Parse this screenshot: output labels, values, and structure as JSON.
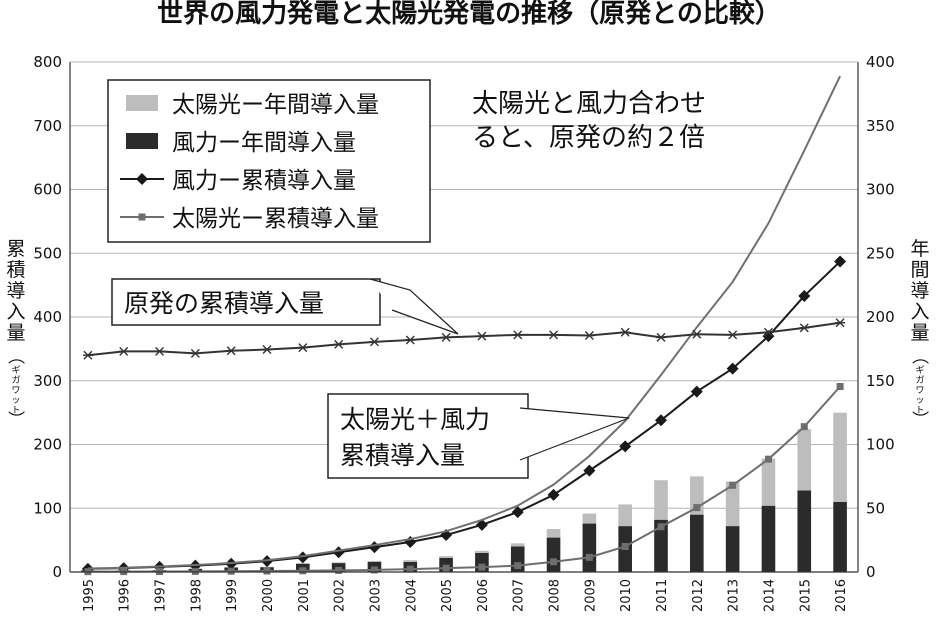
{
  "chart_data": {
    "type": "bar+line",
    "title": "世界の風力発電と太陽光発電の推移（原発との比較）",
    "categories": [
      "1995",
      "1996",
      "1997",
      "1998",
      "1999",
      "2000",
      "2001",
      "2002",
      "2003",
      "2004",
      "2005",
      "2006",
      "2007",
      "2008",
      "2009",
      "2010",
      "2011",
      "2012",
      "2013",
      "2014",
      "2015",
      "2016"
    ],
    "y_left": {
      "label_chars": [
        "累",
        "積",
        "導",
        "入",
        "量"
      ],
      "unit_paren_open": "（",
      "unit_chars": [
        "ギ",
        "ガ",
        "ワ",
        "ッ",
        "ト"
      ],
      "unit_paren_close": "）",
      "ylim": [
        0,
        800
      ],
      "ticks": [
        0,
        100,
        200,
        300,
        400,
        500,
        600,
        700,
        800
      ]
    },
    "y_right": {
      "label_chars": [
        "年",
        "間",
        "導",
        "入",
        "量"
      ],
      "unit_paren_open": "（",
      "unit_chars": [
        "ギ",
        "ガ",
        "ワ",
        "ッ",
        "ト"
      ],
      "unit_paren_close": "）",
      "ylim": [
        0,
        400
      ],
      "ticks": [
        0,
        50,
        100,
        150,
        200,
        250,
        300,
        350,
        400
      ]
    },
    "grid": true,
    "legend_position": "top-left",
    "series": [
      {
        "name": "太陽光ー年間導入量",
        "kind": "bar",
        "axis": "right",
        "color": "#bdbdbd",
        "values": [
          0.1,
          0.1,
          0.1,
          0.2,
          0.3,
          0.3,
          0.4,
          0.6,
          0.7,
          1.3,
          1.5,
          1.6,
          2.5,
          6.7,
          7.8,
          17,
          31,
          30,
          35,
          37,
          48,
          70
        ]
      },
      {
        "name": "風力ー年間導入量",
        "kind": "bar",
        "axis": "right",
        "color": "#2b2b2b",
        "values": [
          1.3,
          1.3,
          1.5,
          2.5,
          3.5,
          3.8,
          6.5,
          7,
          8,
          8,
          11,
          15,
          20,
          27,
          38,
          36,
          41,
          45,
          36,
          52,
          64,
          55
        ]
      },
      {
        "name": "風力ー累積導入量",
        "kind": "line",
        "axis": "left",
        "marker": "diamond",
        "color": "#1a1a1a",
        "values": [
          5,
          6,
          8,
          10,
          13,
          17,
          23,
          31,
          39,
          47,
          58,
          74,
          94,
          121,
          159,
          197,
          238,
          283,
          319,
          370,
          433,
          487
        ]
      },
      {
        "name": "太陽光ー累積導入量",
        "kind": "line",
        "axis": "left",
        "marker": "square",
        "color": "#6e6e6e",
        "values": [
          0.5,
          0.6,
          0.7,
          0.9,
          1.2,
          1.5,
          1.9,
          2.5,
          3.2,
          4.5,
          6,
          7.6,
          10,
          16,
          23,
          40,
          71,
          101,
          136,
          177,
          228,
          291
        ]
      },
      {
        "name": "太陽光＋風力累積導入量",
        "kind": "line",
        "axis": "left",
        "marker": "none",
        "color": "#707070",
        "values": [
          5.5,
          6.6,
          8.7,
          10.9,
          14.2,
          18.5,
          24.9,
          33.5,
          42.2,
          51.5,
          64,
          81.6,
          104,
          137,
          182,
          237,
          309,
          384,
          455,
          547,
          661,
          778
        ]
      },
      {
        "name": "原発の累積導入量",
        "kind": "line",
        "axis": "left",
        "marker": "star",
        "color": "#333333",
        "values": [
          340,
          346,
          346,
          343,
          347,
          349,
          352,
          357,
          361,
          364,
          368,
          370,
          372,
          372,
          371,
          376,
          368,
          373,
          372,
          376,
          383,
          391
        ]
      }
    ],
    "annotations": {
      "note_line1": "太陽光と風力合わせ",
      "note_line2": "ると、原発の約２倍",
      "nuclear_label": "原発の累積導入量",
      "sum_label_line1": "太陽光＋風力",
      "sum_label_line2": "累積導入量"
    }
  }
}
